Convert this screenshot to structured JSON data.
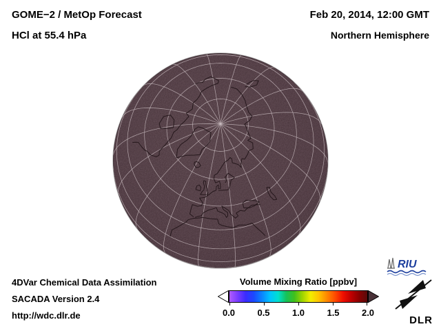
{
  "header": {
    "product": "GOME−2 / MetOp Forecast",
    "species_level": "HCl at 55.4 hPa",
    "datetime": "Feb 20, 2014, 12:00 GMT",
    "region": "Northern Hemisphere"
  },
  "footer": {
    "system": "4DVar Chemical Data Assimilation",
    "version": "SACADA Version 2.4",
    "url": "http://wdc.dlr.de"
  },
  "colorbar": {
    "title": "Volume Mixing Ratio [ppbv]",
    "tick_labels": [
      "0.0",
      "0.5",
      "1.0",
      "1.5",
      "2.0"
    ],
    "colors": [
      "#b05cff",
      "#7a3dff",
      "#3a2bff",
      "#1b49ff",
      "#0a84ff",
      "#00c3ff",
      "#00e0d0",
      "#15c25a",
      "#3fbf1e",
      "#9ed400",
      "#f2ee00",
      "#ffc400",
      "#ff8a00",
      "#ff4d00",
      "#f01000",
      "#c00000",
      "#8a0000",
      "#5a0b0b"
    ],
    "under_arrow_color": "#ffffff",
    "over_arrow_color": "#493137"
  },
  "logos": {
    "riu_text": "RIU",
    "dlr_text": "DLR"
  },
  "chart_data": {
    "type": "heatmap",
    "title": "GOME−2 / MetOp Forecast — HCl at 55.4 hPa",
    "projection": "orthographic globe, Northern Hemisphere view (pole near upper center)",
    "variable": "HCl volume mixing ratio",
    "units": "ppbv",
    "colorbar_title": "Volume Mixing Ratio [ppbv]",
    "scale_min": 0.0,
    "scale_max": 2.0,
    "scale_ticks": [
      0.0,
      0.5,
      1.0,
      1.5,
      2.0
    ],
    "field_summary": "Near-uniform dark maroon shading across the whole visible hemisphere, i.e. values at or above the 2.0 ppbv top of the scale",
    "graticule": "meridians every 20 degrees, parallels every 15 degrees",
    "valid_time": "Feb 20, 2014, 12:00 GMT"
  }
}
